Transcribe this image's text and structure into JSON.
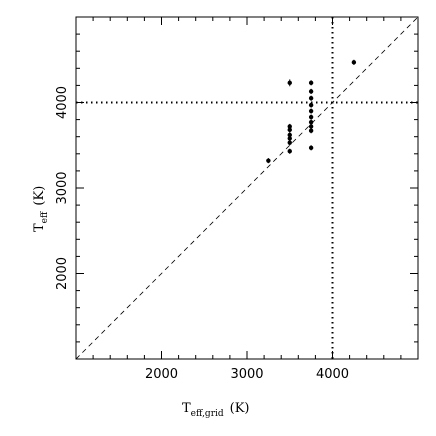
{
  "chart_data": {
    "type": "scatter",
    "xlabel_main": "T",
    "xlabel_sub": "eff,grid",
    "xlabel_unit": "(K)",
    "ylabel_main": "T",
    "ylabel_sub": "eff",
    "ylabel_unit": "(K)",
    "xlim": [
      1000,
      5000
    ],
    "ylim": [
      1000,
      5000
    ],
    "xticks": [
      2000,
      3000,
      4000
    ],
    "yticks": [
      2000,
      3000,
      4000
    ],
    "x_tick_labels": [
      "2000",
      "3000",
      "4000"
    ],
    "y_tick_labels": [
      "2000",
      "3000",
      "4000"
    ],
    "grid": false,
    "reference_line": {
      "type": "identity",
      "style": "dashed",
      "from": [
        1000,
        1000
      ],
      "to": [
        5000,
        5000
      ]
    },
    "threshold_lines": [
      {
        "orientation": "vertical",
        "value": 4000,
        "style": "dotted"
      },
      {
        "orientation": "horizontal",
        "value": 4000,
        "style": "dotted"
      }
    ],
    "series": [
      {
        "points": [
          {
            "x": 3250,
            "y": 3320,
            "yerr": 30
          },
          {
            "x": 3500,
            "y": 4230,
            "yerr": 40
          },
          {
            "x": 3500,
            "y": 3720,
            "yerr": 30
          },
          {
            "x": 3500,
            "y": 3680,
            "yerr": 30
          },
          {
            "x": 3500,
            "y": 3620,
            "yerr": 30
          },
          {
            "x": 3500,
            "y": 3580,
            "yerr": 30
          },
          {
            "x": 3500,
            "y": 3530,
            "yerr": 30
          },
          {
            "x": 3500,
            "y": 3430,
            "yerr": 30
          },
          {
            "x": 3750,
            "y": 4230,
            "yerr": 30
          },
          {
            "x": 3750,
            "y": 4130,
            "yerr": 30
          },
          {
            "x": 3750,
            "y": 4050,
            "yerr": 30
          },
          {
            "x": 3750,
            "y": 3970,
            "yerr": 30
          },
          {
            "x": 3750,
            "y": 3900,
            "yerr": 30
          },
          {
            "x": 3750,
            "y": 3830,
            "yerr": 30
          },
          {
            "x": 3750,
            "y": 3770,
            "yerr": 30
          },
          {
            "x": 3750,
            "y": 3720,
            "yerr": 30
          },
          {
            "x": 3750,
            "y": 3670,
            "yerr": 30
          },
          {
            "x": 3750,
            "y": 3470,
            "yerr": 30
          },
          {
            "x": 4250,
            "y": 4470,
            "yerr": 30
          }
        ]
      }
    ]
  }
}
